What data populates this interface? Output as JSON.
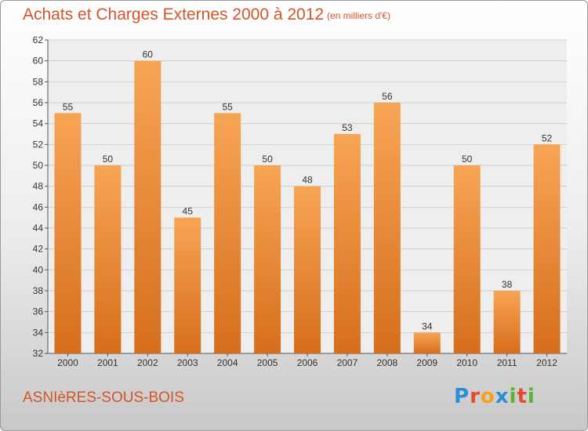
{
  "header": {
    "title": "Achats et Charges Externes 2000 à 2012",
    "subtitle": "(en milliers d'€)"
  },
  "footer": {
    "city": "ASNIèRES-SOUS-BOIS",
    "logo_letters": [
      "P",
      "r",
      "o",
      "x",
      "i",
      "t",
      "i"
    ],
    "logo_colors": [
      "#2a8fd4",
      "#e64a2e",
      "#f5a31a",
      "#2a8fd4",
      "#5ab52e",
      "#e64a2e",
      "#5ab52e"
    ]
  },
  "chart_data": {
    "type": "bar",
    "title": "Achats et Charges Externes 2000 à 2012",
    "subtitle": "(en milliers d'€)",
    "categories": [
      "2000",
      "2001",
      "2002",
      "2003",
      "2004",
      "2005",
      "2006",
      "2007",
      "2008",
      "2009",
      "2010",
      "2011",
      "2012"
    ],
    "values": [
      55,
      50,
      60,
      45,
      55,
      50,
      48,
      53,
      56,
      34,
      50,
      38,
      52
    ],
    "ylim": [
      32,
      62
    ],
    "yticks": [
      32,
      34,
      36,
      38,
      40,
      42,
      44,
      46,
      48,
      50,
      52,
      54,
      56,
      58,
      60,
      62
    ],
    "grid": true,
    "bar_color_top": "#f7a555",
    "bar_color_bottom": "#d66e1c",
    "xlabel": "",
    "ylabel": ""
  }
}
